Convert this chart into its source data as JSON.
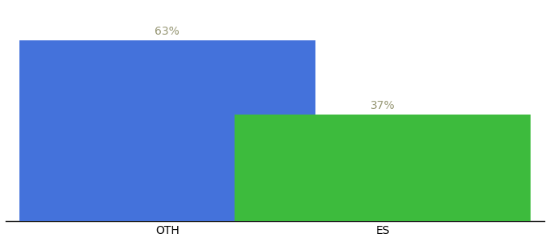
{
  "categories": [
    "OTH",
    "ES"
  ],
  "values": [
    63,
    37
  ],
  "bar_colors": [
    "#4472db",
    "#3dbb3d"
  ],
  "label_texts": [
    "63%",
    "37%"
  ],
  "label_color": "#999977",
  "ylim": [
    0,
    75
  ],
  "background_color": "#ffffff",
  "tick_label_fontsize": 10,
  "value_label_fontsize": 10,
  "bar_width": 0.55,
  "x_positions": [
    0.3,
    0.7
  ]
}
